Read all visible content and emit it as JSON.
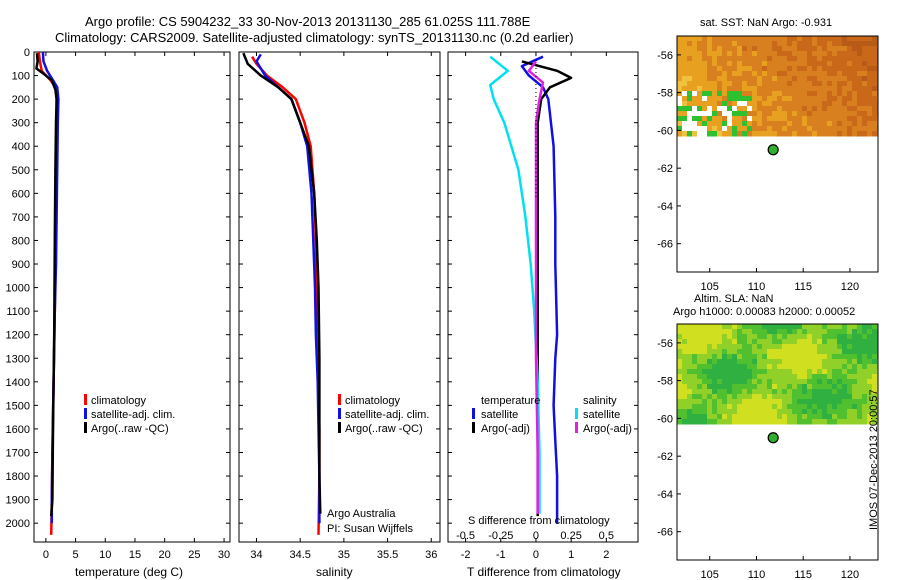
{
  "header": {
    "line1": "Argo profile: CS 5904232_33 30-Nov-2013 20131130_285 61.025S 111.788E",
    "line2": "Climatology: CARS2009. Satellite-adjusted climatology: synTS_20131130.nc (0.2d earlier)"
  },
  "side_label": "IMOS 07-Dec-2013 20:00:57",
  "colors": {
    "climatology": "#ff0000",
    "satellite": "#1010e0",
    "argo": "#000000",
    "satellite_s": "#00e0f0",
    "argo_s": "#e020e0"
  },
  "chart_data": [
    {
      "type": "line",
      "id": "temperature",
      "xlabel": "temperature (deg C)",
      "ylabel": "",
      "xlim": [
        -2,
        31
      ],
      "ylim": [
        2080,
        0
      ],
      "xticks": [
        0,
        5,
        10,
        15,
        20,
        25,
        30
      ],
      "yticks": [
        0,
        100,
        200,
        300,
        400,
        500,
        600,
        700,
        800,
        900,
        1000,
        1100,
        1200,
        1300,
        1400,
        1500,
        1600,
        1700,
        1800,
        1900,
        2000
      ],
      "legend": [
        "climatology",
        "satellite-adj. clim.",
        "Argo(..raw -QC)"
      ],
      "series": [
        {
          "name": "climatology",
          "color_key": "climatology",
          "x": [
            -1.2,
            -1.0,
            -0.7,
            0.8,
            1.6,
            1.8,
            1.9,
            1.8,
            1.7,
            1.6,
            1.5,
            1.3,
            1.1,
            1.0,
            0.9
          ],
          "depth": [
            0,
            40,
            80,
            120,
            150,
            200,
            300,
            500,
            700,
            900,
            1100,
            1400,
            1700,
            1900,
            2050
          ]
        },
        {
          "name": "satellite-adj. clim.",
          "color_key": "satellite",
          "x": [
            -0.5,
            -0.4,
            0.2,
            1.2,
            1.9,
            2.1,
            2.0,
            1.9,
            1.8,
            1.7,
            1.5,
            1.3,
            1.1,
            1.0,
            1.0
          ],
          "depth": [
            0,
            40,
            80,
            120,
            150,
            200,
            300,
            500,
            700,
            900,
            1100,
            1400,
            1700,
            1900,
            2000
          ]
        },
        {
          "name": "Argo(..raw -QC)",
          "color_key": "argo",
          "x": [
            -1.5,
            -1.4,
            -1.6,
            -0.5,
            1.0,
            1.6,
            1.8,
            1.7,
            1.6,
            1.5,
            1.4,
            1.2,
            1.1,
            0.9
          ],
          "depth": [
            5,
            40,
            70,
            90,
            120,
            160,
            200,
            300,
            500,
            800,
            1200,
            1600,
            1900,
            1970
          ]
        }
      ]
    },
    {
      "type": "line",
      "id": "salinity",
      "xlabel": "salinity",
      "xlim": [
        33.8,
        36.1
      ],
      "ylim": [
        2080,
        0
      ],
      "xticks": [
        34,
        34.5,
        35,
        35.5,
        36
      ],
      "xticklabels": [
        "34",
        "34.5",
        "35",
        "35.5",
        "36"
      ],
      "legend": [
        "climatology",
        "satellite-adj. clim.",
        "Argo(..raw -QC)"
      ],
      "annotation": [
        "Argo Australia",
        "PI: Susan Wijffels"
      ],
      "series": [
        {
          "name": "climatology",
          "color_key": "climatology",
          "x": [
            33.95,
            34.0,
            34.12,
            34.3,
            34.45,
            34.55,
            34.62,
            34.66,
            34.68,
            34.69,
            34.7,
            34.71,
            34.72,
            34.72,
            34.71
          ],
          "depth": [
            20,
            50,
            100,
            150,
            200,
            300,
            400,
            600,
            800,
            1000,
            1200,
            1400,
            1600,
            1800,
            2050
          ]
        },
        {
          "name": "satellite-adj. clim.",
          "color_key": "satellite",
          "x": [
            34.05,
            34.0,
            34.1,
            34.25,
            34.4,
            34.5,
            34.58,
            34.63,
            34.65,
            34.67,
            34.68,
            34.7,
            34.71,
            34.72,
            34.72
          ],
          "depth": [
            10,
            40,
            100,
            150,
            200,
            300,
            400,
            600,
            800,
            1000,
            1200,
            1400,
            1600,
            1800,
            2000
          ]
        },
        {
          "name": "Argo(..raw -QC)",
          "color_key": "argo",
          "x": [
            33.85,
            33.9,
            34.05,
            34.25,
            34.4,
            34.5,
            34.6,
            34.66,
            34.69,
            34.71,
            34.72,
            34.72,
            34.72,
            34.73
          ],
          "depth": [
            5,
            50,
            100,
            150,
            200,
            300,
            400,
            600,
            800,
            1000,
            1300,
            1600,
            1800,
            1960
          ]
        }
      ]
    },
    {
      "type": "line",
      "id": "differences",
      "xlabel": "T difference from climatology",
      "top_label": "S difference from climatology",
      "xlim": [
        -2.5,
        2.9
      ],
      "ylim": [
        2080,
        0
      ],
      "xticks": [
        -2,
        -1,
        0,
        1,
        2
      ],
      "top_ticks": [
        -0.5,
        -0.25,
        0,
        0.25,
        0.5
      ],
      "top_ticklabels": [
        "-0.5",
        "-0.25",
        "0",
        "0.25",
        "0.5"
      ],
      "legend_headers": [
        "temperature",
        "salinity"
      ],
      "legend_left": [
        "satellite",
        "Argo(-adj)"
      ],
      "legend_right": [
        "satellite",
        "Argo(-adj)"
      ],
      "series": [
        {
          "name": "satellite",
          "color_key": "satellite",
          "x": [
            0.2,
            -0.4,
            -0.2,
            0.2,
            0.35,
            0.5,
            0.55,
            0.55,
            0.6,
            0.55,
            0.5,
            0.55,
            0.6,
            0.6,
            0.6
          ],
          "depth": [
            20,
            60,
            100,
            150,
            200,
            400,
            700,
            900,
            1200,
            1300,
            1500,
            1650,
            1800,
            1900,
            2000
          ]
        },
        {
          "name": "Argo(-adj)",
          "color_key": "argo",
          "x": [
            -0.4,
            0.6,
            1.0,
            0.4,
            0.15,
            0.05,
            0.05,
            0.05,
            0.05,
            0.05,
            0.05
          ],
          "depth": [
            40,
            80,
            110,
            150,
            200,
            300,
            600,
            900,
            1300,
            1700,
            1970
          ]
        },
        {
          "name": "satellite",
          "color_key": "satellite_s",
          "x": [
            -1.3,
            -0.8,
            -1.3,
            -1.2,
            -0.9,
            -0.5,
            -0.3,
            -0.15,
            -0.05,
            0.05,
            0.1,
            0.1
          ],
          "depth": [
            20,
            80,
            140,
            200,
            300,
            500,
            700,
            900,
            1100,
            1400,
            1700,
            1960
          ]
        },
        {
          "name": "Argo(-adj)",
          "color_key": "argo_s",
          "x": [
            0.0,
            -0.2,
            0.2,
            0.1,
            0.0,
            0.0,
            0.0,
            0.0,
            0.05,
            0.05
          ],
          "depth": [
            40,
            80,
            130,
            200,
            300,
            600,
            900,
            1300,
            1700,
            1960
          ]
        }
      ]
    },
    {
      "type": "heatmap",
      "id": "sst_map",
      "title": "sat. SST: NaN Argo: -0.931",
      "xlim": [
        101.5,
        123
      ],
      "ylim": [
        -67.5,
        -55
      ],
      "xticks": [
        105,
        110,
        115,
        120
      ],
      "yticks": [
        -56,
        -58,
        -60,
        -62,
        -64,
        -66
      ],
      "argo_position": [
        111.788,
        -61.025
      ]
    },
    {
      "type": "heatmap",
      "id": "sla_map",
      "title_line1": "Altim. SLA: NaN",
      "title_line2": "Argo h1000: 0.00083 h2000: 0.00052",
      "xlim": [
        101.5,
        123
      ],
      "ylim": [
        -67.5,
        -55
      ],
      "xticks": [
        105,
        110,
        115,
        120
      ],
      "yticks": [
        -56,
        -58,
        -60,
        -62,
        -64,
        -66
      ],
      "argo_position": [
        111.788,
        -61.025
      ]
    }
  ]
}
